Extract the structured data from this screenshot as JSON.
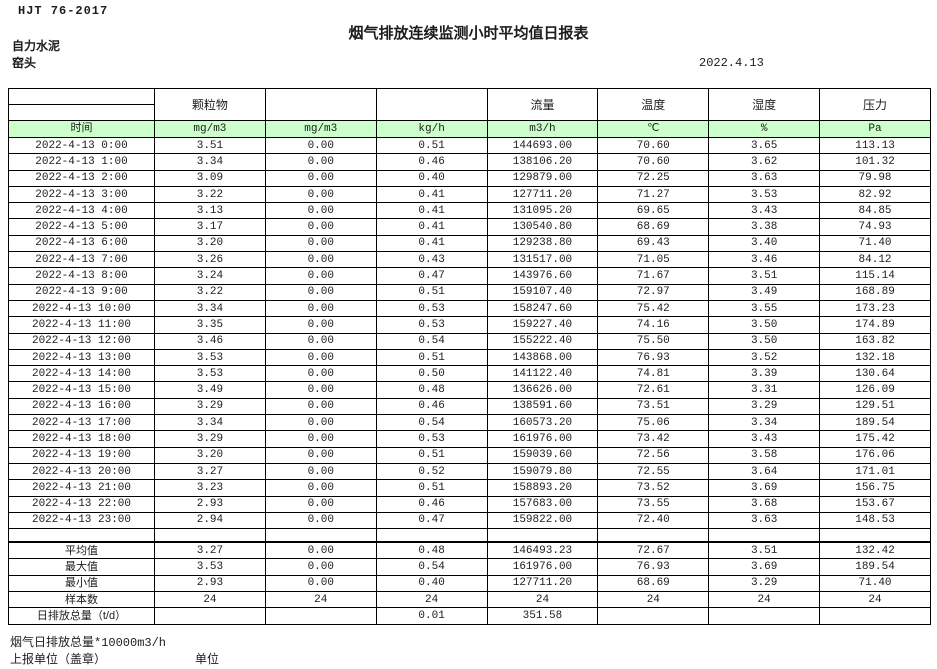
{
  "meta": {
    "standard": "HJT  76-2017",
    "title": "烟气排放连续监测小时平均值日报表",
    "company": "自力水泥",
    "point": "窑头",
    "date": "2022.4.13"
  },
  "colors": {
    "unit_row_green": "#CCFFCC"
  },
  "table": {
    "group_headers": [
      "",
      "颗粒物",
      "",
      "",
      "流量",
      "温度",
      "湿度",
      "压力"
    ],
    "unit_row": [
      "时间",
      "mg/m3",
      "mg/m3",
      "kg/h",
      "m3/h",
      "℃",
      "%",
      "Pa"
    ],
    "rows": [
      [
        "2022-4-13 0:00",
        "3.51",
        "0.00",
        "0.51",
        "144693.00",
        "70.60",
        "3.65",
        "113.13"
      ],
      [
        "2022-4-13 1:00",
        "3.34",
        "0.00",
        "0.46",
        "138106.20",
        "70.60",
        "3.62",
        "101.32"
      ],
      [
        "2022-4-13 2:00",
        "3.09",
        "0.00",
        "0.40",
        "129879.00",
        "72.25",
        "3.63",
        "79.98"
      ],
      [
        "2022-4-13 3:00",
        "3.22",
        "0.00",
        "0.41",
        "127711.20",
        "71.27",
        "3.53",
        "82.92"
      ],
      [
        "2022-4-13 4:00",
        "3.13",
        "0.00",
        "0.41",
        "131095.20",
        "69.65",
        "3.43",
        "84.85"
      ],
      [
        "2022-4-13 5:00",
        "3.17",
        "0.00",
        "0.41",
        "130540.80",
        "68.69",
        "3.38",
        "74.93"
      ],
      [
        "2022-4-13 6:00",
        "3.20",
        "0.00",
        "0.41",
        "129238.80",
        "69.43",
        "3.40",
        "71.40"
      ],
      [
        "2022-4-13 7:00",
        "3.26",
        "0.00",
        "0.43",
        "131517.00",
        "71.05",
        "3.46",
        "84.12"
      ],
      [
        "2022-4-13 8:00",
        "3.24",
        "0.00",
        "0.47",
        "143976.60",
        "71.67",
        "3.51",
        "115.14"
      ],
      [
        "2022-4-13 9:00",
        "3.22",
        "0.00",
        "0.51",
        "159107.40",
        "72.97",
        "3.49",
        "168.89"
      ],
      [
        "2022-4-13 10:00",
        "3.34",
        "0.00",
        "0.53",
        "158247.60",
        "75.42",
        "3.55",
        "173.23"
      ],
      [
        "2022-4-13 11:00",
        "3.35",
        "0.00",
        "0.53",
        "159227.40",
        "74.16",
        "3.50",
        "174.89"
      ],
      [
        "2022-4-13 12:00",
        "3.46",
        "0.00",
        "0.54",
        "155222.40",
        "75.50",
        "3.50",
        "163.82"
      ],
      [
        "2022-4-13 13:00",
        "3.53",
        "0.00",
        "0.51",
        "143868.00",
        "76.93",
        "3.52",
        "132.18"
      ],
      [
        "2022-4-13 14:00",
        "3.53",
        "0.00",
        "0.50",
        "141122.40",
        "74.81",
        "3.39",
        "130.64"
      ],
      [
        "2022-4-13 15:00",
        "3.49",
        "0.00",
        "0.48",
        "136626.00",
        "72.61",
        "3.31",
        "126.09"
      ],
      [
        "2022-4-13 16:00",
        "3.29",
        "0.00",
        "0.46",
        "138591.60",
        "73.51",
        "3.29",
        "129.51"
      ],
      [
        "2022-4-13 17:00",
        "3.34",
        "0.00",
        "0.54",
        "160573.20",
        "75.06",
        "3.34",
        "189.54"
      ],
      [
        "2022-4-13 18:00",
        "3.29",
        "0.00",
        "0.53",
        "161976.00",
        "73.42",
        "3.43",
        "175.42"
      ],
      [
        "2022-4-13 19:00",
        "3.20",
        "0.00",
        "0.51",
        "159039.60",
        "72.56",
        "3.58",
        "176.06"
      ],
      [
        "2022-4-13 20:00",
        "3.27",
        "0.00",
        "0.52",
        "159079.80",
        "72.55",
        "3.64",
        "171.01"
      ],
      [
        "2022-4-13 21:00",
        "3.23",
        "0.00",
        "0.51",
        "158893.20",
        "73.52",
        "3.69",
        "156.75"
      ],
      [
        "2022-4-13 22:00",
        "2.93",
        "0.00",
        "0.46",
        "157683.00",
        "73.55",
        "3.68",
        "153.67"
      ],
      [
        "2022-4-13 23:00",
        "2.94",
        "0.00",
        "0.47",
        "159822.00",
        "72.40",
        "3.63",
        "148.53"
      ]
    ],
    "summary": [
      [
        "平均值",
        "3.27",
        "0.00",
        "0.48",
        "146493.23",
        "72.67",
        "3.51",
        "132.42"
      ],
      [
        "最大值",
        "3.53",
        "0.00",
        "0.54",
        "161976.00",
        "76.93",
        "3.69",
        "189.54"
      ],
      [
        "最小值",
        "2.93",
        "0.00",
        "0.40",
        "127711.20",
        "68.69",
        "3.29",
        "71.40"
      ],
      [
        "样本数",
        "24",
        "24",
        "24",
        "24",
        "24",
        "24",
        "24"
      ],
      [
        "日排放总量（t/d）",
        "",
        "",
        "0.01",
        "351.58",
        "",
        "",
        ""
      ]
    ]
  },
  "footer": {
    "note": "烟气日排放总量*10000m3/h",
    "report_unit_label": "上报单位（盖章）",
    "unit_label": "单位"
  }
}
